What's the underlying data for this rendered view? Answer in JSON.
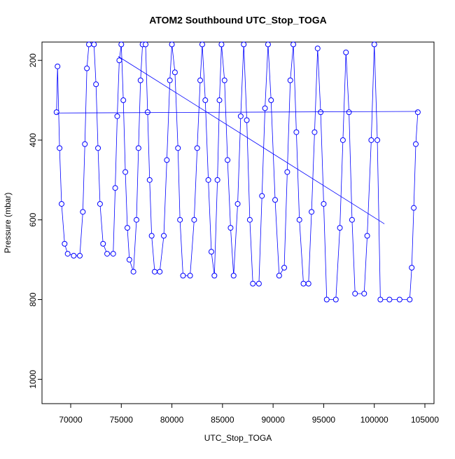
{
  "chart_data": {
    "type": "scatter",
    "title": "ATOM2 Southbound UTC_Stop_TOGA",
    "xlabel": "UTC_Stop_TOGA",
    "ylabel": "Pressure (mbar)",
    "xlim": [
      67164,
      105899
    ],
    "ylim": [
      154,
      1061
    ],
    "y_reversed": true,
    "xticks": [
      70000,
      75000,
      80000,
      85000,
      90000,
      95000,
      100000,
      105000
    ],
    "yticks": [
      200,
      400,
      600,
      800,
      1000
    ],
    "grid": false,
    "series": [
      {
        "color": "#0000ff",
        "style": "points_lines",
        "x": [
          68600,
          68700,
          68900,
          69100,
          69400,
          69700,
          70300,
          70900,
          71200,
          71400,
          71600,
          71800,
          72300,
          72500,
          72700,
          72900,
          73200,
          73600,
          74200,
          74400,
          74600,
          74800,
          75000,
          75200,
          75400,
          75600,
          75800,
          76200,
          76500,
          76700,
          76900,
          77100,
          77400,
          77600,
          77800,
          78000,
          78300,
          78800,
          79200,
          79500,
          79800,
          80000,
          80300,
          80600,
          80800,
          81100,
          81800,
          82200,
          82500,
          82800,
          83000,
          83300,
          83600,
          83900,
          84200,
          84500,
          84700,
          84900,
          85200,
          85500,
          85800,
          86100,
          86500,
          86800,
          87100,
          87400,
          87700,
          88000,
          88600,
          88900,
          89200,
          89500,
          89800,
          90200,
          90600,
          91100,
          91400,
          91700,
          92000,
          92300,
          92600,
          93000,
          93500,
          93800,
          94100,
          94400,
          94700,
          95000,
          95300,
          96200,
          96600,
          96900,
          97200,
          97500,
          97800,
          98100,
          99000,
          99300,
          99700,
          100000,
          100300,
          100600,
          101500,
          102500,
          103500,
          103700,
          103900,
          104100,
          104300
        ],
        "values": [
          330,
          215,
          420,
          560,
          660,
          685,
          690,
          690,
          580,
          410,
          220,
          160,
          160,
          260,
          420,
          560,
          660,
          685,
          685,
          520,
          340,
          200,
          160,
          300,
          480,
          620,
          700,
          730,
          600,
          420,
          250,
          160,
          160,
          330,
          500,
          640,
          730,
          730,
          640,
          450,
          250,
          160,
          230,
          420,
          600,
          740,
          740,
          600,
          420,
          250,
          160,
          300,
          500,
          680,
          740,
          500,
          300,
          160,
          250,
          450,
          620,
          740,
          560,
          340,
          160,
          350,
          600,
          760,
          760,
          540,
          320,
          160,
          300,
          550,
          740,
          720,
          480,
          250,
          160,
          380,
          600,
          760,
          760,
          580,
          380,
          170,
          330,
          560,
          800,
          800,
          620,
          400,
          180,
          330,
          600,
          785,
          785,
          640,
          400,
          160,
          400,
          800,
          800,
          800,
          800,
          720,
          570,
          410,
          330
        ]
      },
      {
        "color": "#0000ff",
        "style": "line",
        "x": [
          74700,
          101000
        ],
        "values": [
          190,
          610
        ]
      },
      {
        "color": "#0000ff",
        "style": "line",
        "x": [
          68600,
          104300
        ],
        "values": [
          332,
          328
        ]
      }
    ]
  }
}
